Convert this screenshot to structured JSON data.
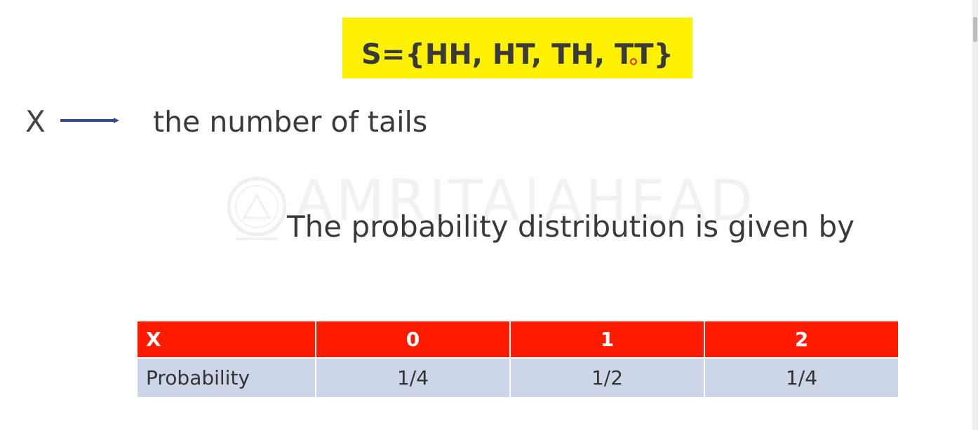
{
  "sample_space": {
    "text": "S={HH, HT, TH, TT}"
  },
  "definition": {
    "variable": "X",
    "description": "the number of tails"
  },
  "watermark": {
    "text": "AMRITA|AHEAD"
  },
  "statement": {
    "text": "The probability distribution is given by"
  },
  "distribution_table": {
    "header": [
      "X",
      "0",
      "1",
      "2"
    ],
    "row": [
      "Probability",
      "1/4",
      "1/2",
      "1/4"
    ]
  },
  "colors": {
    "highlight": "#fff200",
    "header_row": "#ff1a00",
    "body_row": "#cdd5e8",
    "arrow": "#2f4f8f"
  }
}
